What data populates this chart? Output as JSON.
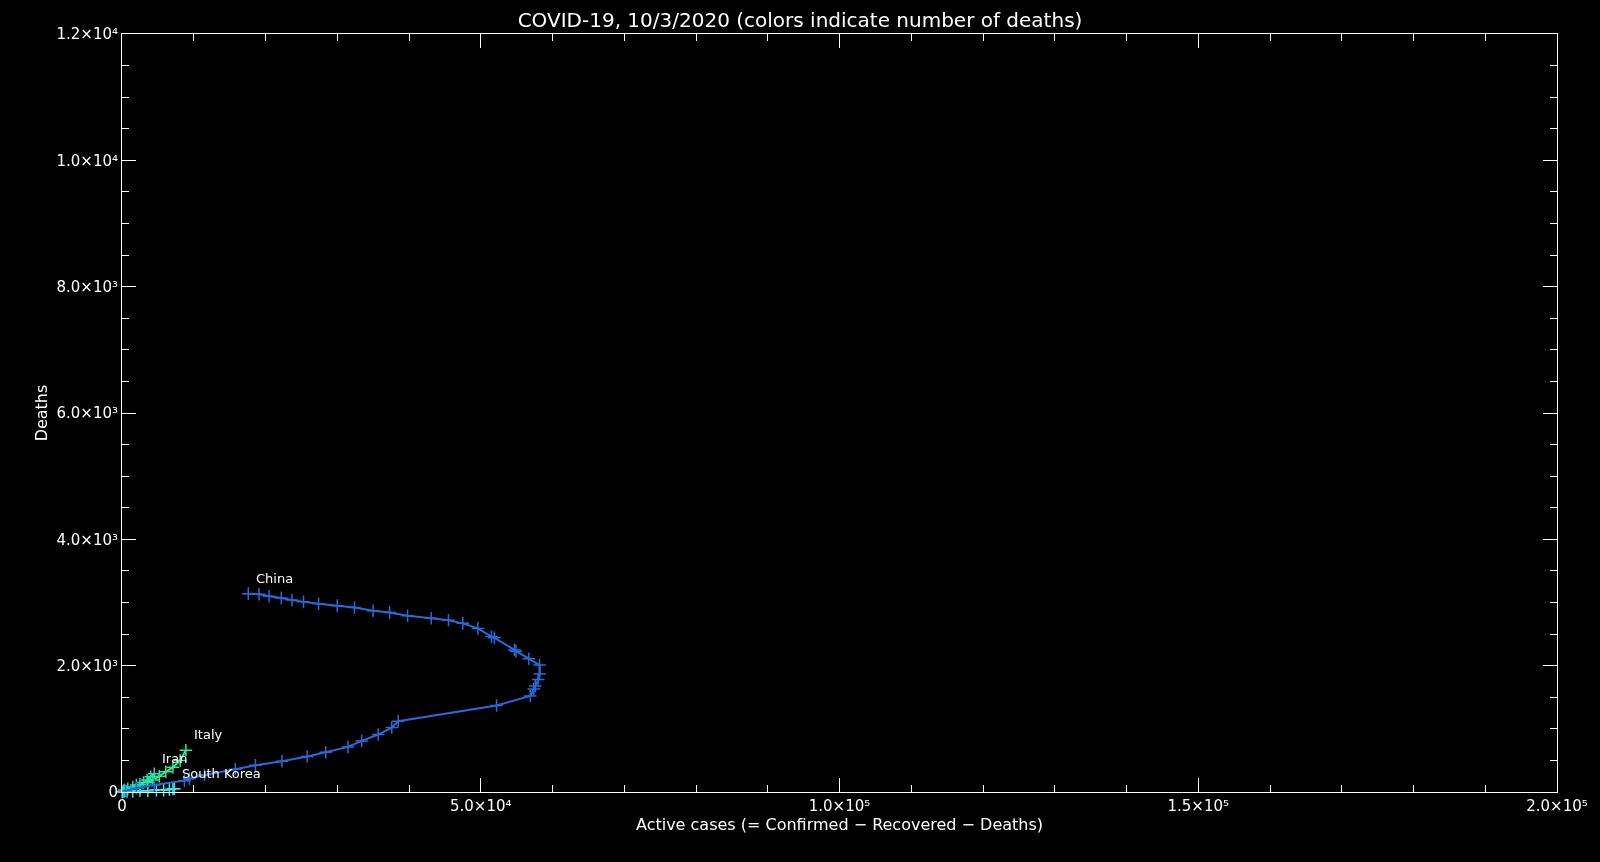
{
  "chart_data": {
    "type": "line",
    "title": "COVID-19, 10/3/2020 (colors indicate number of deaths)",
    "xlabel": "Active cases (= Confirmed − Recovered − Deaths)",
    "ylabel": "Deaths",
    "xlim": [
      0,
      200000
    ],
    "ylim": [
      0,
      12000
    ],
    "xticks": [
      0,
      {
        "value": 50000,
        "label": "5.0×10⁴"
      },
      {
        "value": 100000,
        "label": "1.0×10⁵"
      },
      {
        "value": 150000,
        "label": "1.5×10⁵"
      },
      {
        "value": 200000,
        "label": "2.0×10⁵"
      }
    ],
    "yticks": [
      0,
      {
        "value": 2000,
        "label": "2.0×10³"
      },
      {
        "value": 4000,
        "label": "4.0×10³"
      },
      {
        "value": 6000,
        "label": "6.0×10³"
      },
      {
        "value": 8000,
        "label": "8.0×10³"
      },
      {
        "value": 10000,
        "label": "1.0×10⁴"
      },
      {
        "value": 12000,
        "label": "1.2×10⁴"
      }
    ],
    "grid": false,
    "legend": false,
    "marker": "cross",
    "line_style": "solid",
    "series": [
      {
        "name": "South Korea",
        "color": "#3fe0f0",
        "x": [
          30,
          100,
          300,
          700,
          1500,
          2500,
          3600,
          4800,
          5800,
          6600,
          7100,
          7300
        ],
        "values": [
          0,
          0,
          10,
          10,
          10,
          20,
          20,
          30,
          30,
          40,
          50,
          50
        ]
      },
      {
        "name": "Iran",
        "color": "#28d8b0",
        "x": [
          300,
          800,
          1500,
          2000,
          2500,
          3000,
          3500,
          4000,
          4500
        ],
        "values": [
          30,
          50,
          80,
          110,
          120,
          150,
          190,
          240,
          290
        ]
      },
      {
        "name": "Italy",
        "color": "#30e898",
        "x": [
          3600,
          4300,
          5200,
          6100,
          7100,
          8100,
          8900
        ],
        "values": [
          150,
          190,
          250,
          320,
          390,
          500,
          660
        ]
      },
      {
        "name": "China",
        "color": "#2a6ad8",
        "x": [
          500,
          2000,
          4500,
          8700,
          9400,
          11500,
          15800,
          18600,
          22300,
          25800,
          28400,
          31500,
          33400,
          35700,
          37600,
          38500,
          52200,
          56900,
          57400,
          57600,
          58000,
          58200,
          58200,
          56700,
          54900,
          54700,
          51900,
          51500,
          49600,
          47500,
          45500,
          43100,
          39800,
          37300,
          35000,
          32400,
          30000,
          27400,
          25300,
          23700,
          22200,
          20500,
          19100,
          17600
        ],
        "values": [
          20,
          60,
          110,
          180,
          210,
          270,
          360,
          423,
          487,
          561,
          630,
          714,
          809,
          910,
          1020,
          1120,
          1370,
          1520,
          1630,
          1680,
          1780,
          1870,
          2010,
          2110,
          2230,
          2250,
          2440,
          2460,
          2590,
          2670,
          2720,
          2750,
          2790,
          2840,
          2870,
          2920,
          2950,
          2980,
          3010,
          3040,
          3070,
          3100,
          3130,
          3140
        ]
      }
    ]
  }
}
